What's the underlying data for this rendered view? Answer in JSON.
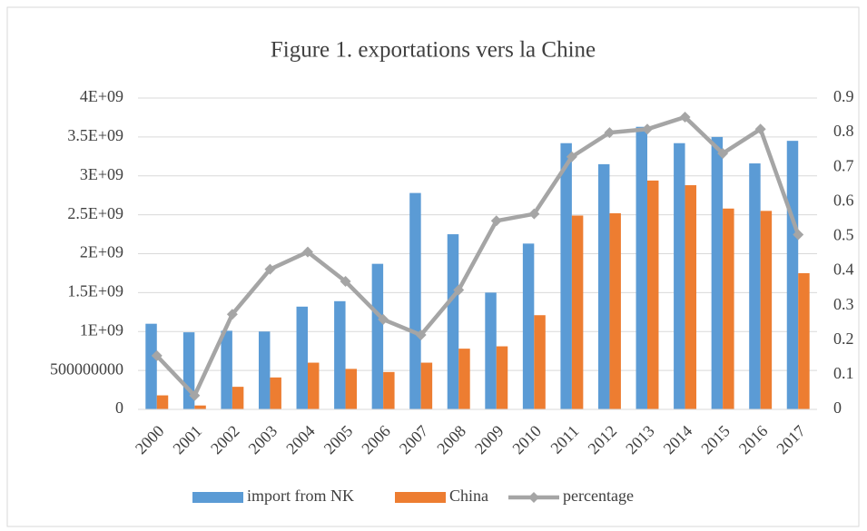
{
  "chart_data": {
    "type": "bar_line",
    "title": "Figure 1. exportations vers la Chine",
    "categories": [
      "2000",
      "2001",
      "2002",
      "2003",
      "2004",
      "2005",
      "2006",
      "2007",
      "2008",
      "2009",
      "2010",
      "2011",
      "2012",
      "2013",
      "2014",
      "2015",
      "2016",
      "2017"
    ],
    "series": [
      {
        "name": "import from NK",
        "color": "#5b9bd5",
        "type": "bar",
        "values": [
          1100000000,
          990000000,
          1010000000,
          1000000000,
          1320000000,
          1390000000,
          1870000000,
          2780000000,
          2250000000,
          1500000000,
          2130000000,
          3420000000,
          3150000000,
          3630000000,
          3420000000,
          3500000000,
          3160000000,
          3450000000
        ]
      },
      {
        "name": "China",
        "color": "#ed7d31",
        "type": "bar",
        "values": [
          180000000,
          50000000,
          290000000,
          410000000,
          600000000,
          520000000,
          480000000,
          600000000,
          780000000,
          810000000,
          1210000000,
          2490000000,
          2520000000,
          2940000000,
          2880000000,
          2580000000,
          2550000000,
          1750000000
        ]
      },
      {
        "name": "percentage",
        "color": "#a5a5a5",
        "type": "line",
        "axis": "y2",
        "values": [
          0.155,
          0.04,
          0.275,
          0.405,
          0.455,
          0.37,
          0.26,
          0.215,
          0.345,
          0.545,
          0.565,
          0.73,
          0.8,
          0.81,
          0.845,
          0.74,
          0.81,
          0.505
        ]
      }
    ],
    "ylim": [
      0,
      4000000000
    ],
    "yticks": [
      0,
      500000000,
      {
        "value": 1000000000,
        "label": "1E+09"
      },
      {
        "value": 1500000000,
        "label": "1.5E+09"
      },
      {
        "value": 2000000000,
        "label": "2E+09"
      },
      {
        "value": 2500000000,
        "label": "2.5E+09"
      },
      {
        "value": 3000000000,
        "label": "3E+09"
      },
      {
        "value": 3500000000,
        "label": "3.5E+09"
      },
      {
        "value": 4000000000,
        "label": "4E+09"
      }
    ],
    "y2lim": [
      0,
      0.9
    ],
    "y2ticks": [
      0,
      0.1,
      0.2,
      0.3,
      0.4,
      0.5,
      0.6,
      0.7,
      0.8,
      0.9
    ],
    "grid": true,
    "legend": "bottom"
  }
}
